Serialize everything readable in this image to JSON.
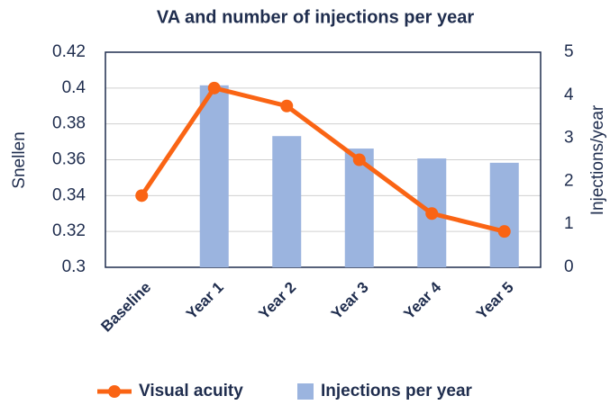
{
  "chart_data": {
    "type": "combo",
    "title": "VA and number of injections per year",
    "categories": [
      "Baseline",
      "Year 1",
      "Year 2",
      "Year 3",
      "Year 4",
      "Year 5"
    ],
    "ylabel": "Snellen",
    "y2label": "Injections/year",
    "ylim": [
      0.3,
      0.42
    ],
    "yticks": [
      0.3,
      0.32,
      0.34,
      0.36,
      0.38,
      0.4,
      0.42
    ],
    "y2lim": [
      0,
      5
    ],
    "y2ticks": [
      0,
      1,
      2,
      3,
      4,
      5
    ],
    "grid": true,
    "legend": "bottom",
    "series": [
      {
        "name": "Visual acuity",
        "type": "line",
        "color": "#fa6414",
        "values": [
          0.34,
          0.4,
          0.39,
          0.36,
          0.33,
          0.32
        ]
      },
      {
        "name": "Injections per year",
        "type": "bar",
        "axis": "y2",
        "color": "#9bb4df",
        "values": [
          null,
          4.23,
          3.05,
          2.76,
          2.53,
          2.43
        ]
      }
    ]
  }
}
